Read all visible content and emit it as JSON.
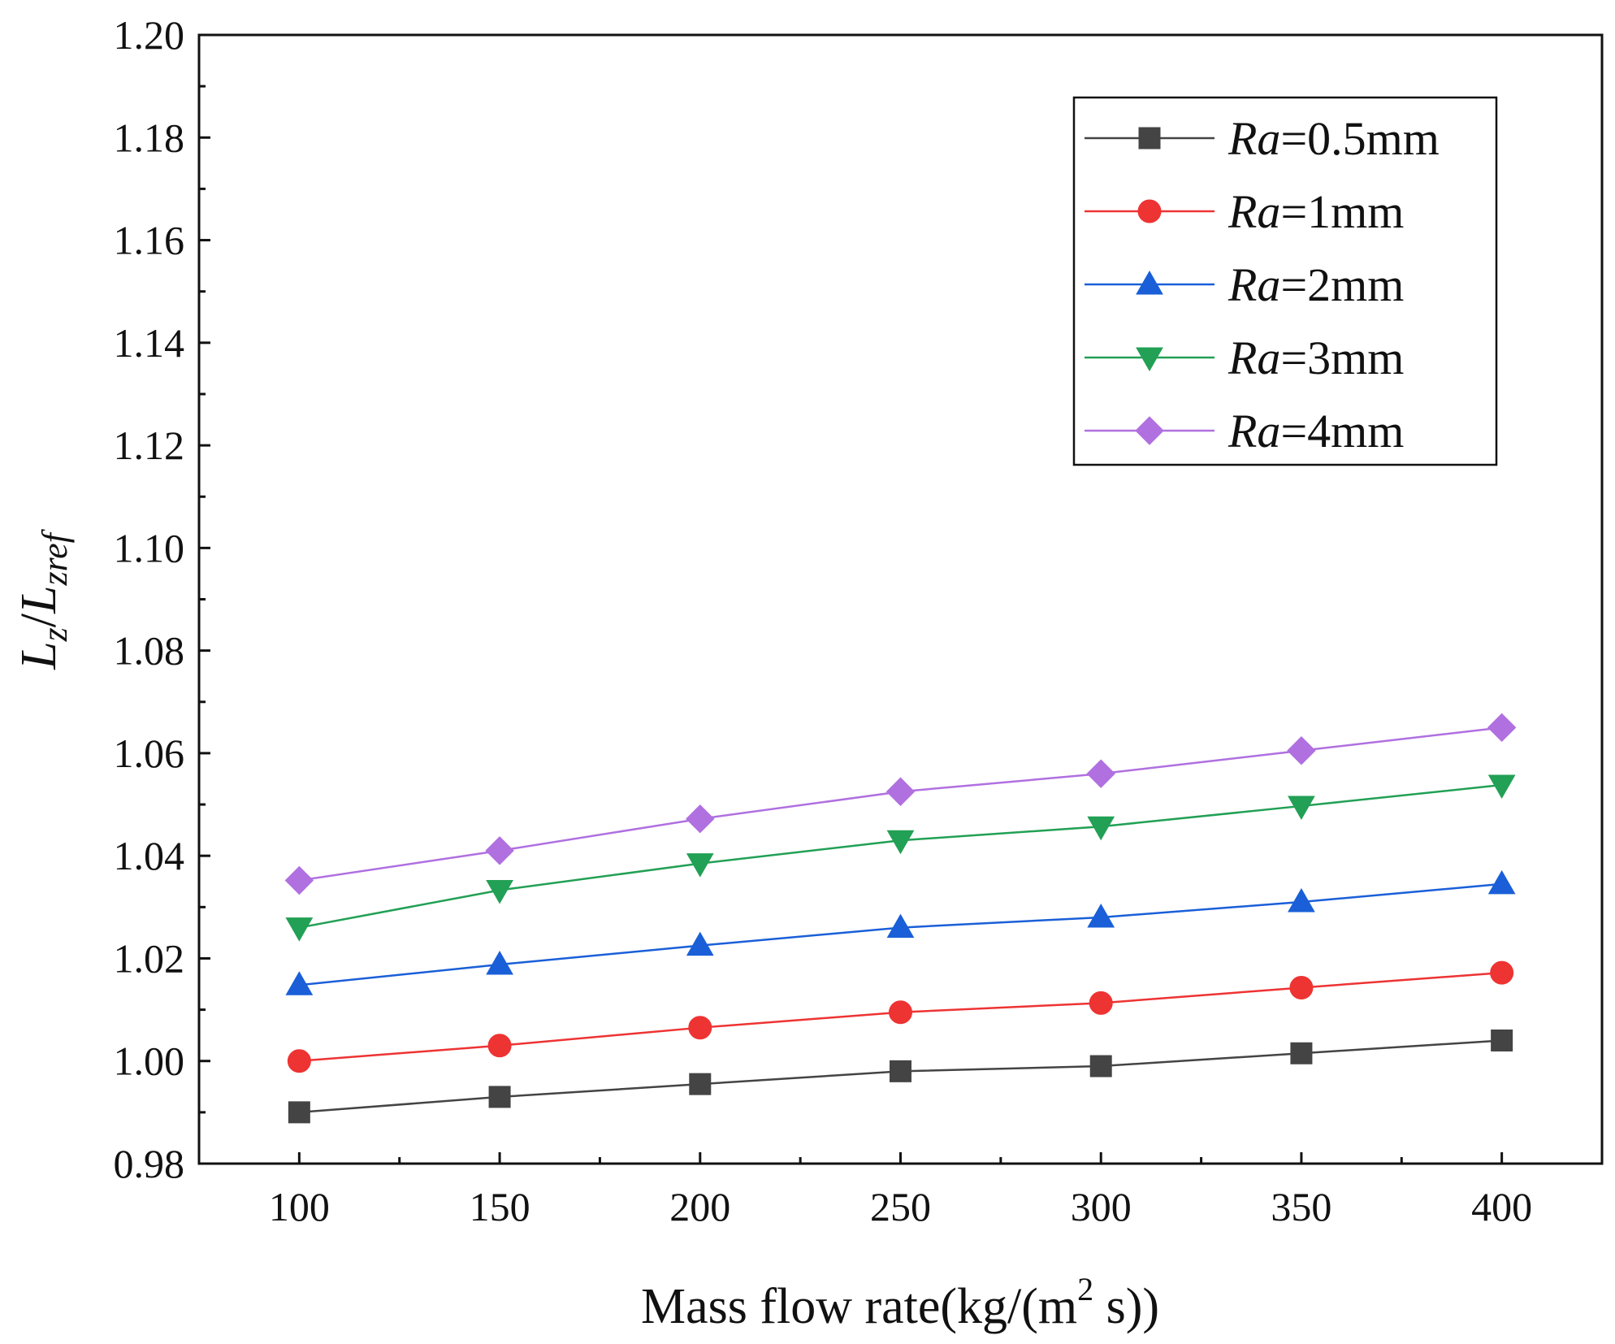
{
  "chart_data": {
    "type": "line",
    "x": [
      100,
      150,
      200,
      250,
      300,
      350,
      400
    ],
    "xticks": [
      "100",
      "150",
      "200",
      "250",
      "300",
      "350",
      "400"
    ],
    "xlim": [
      75,
      425
    ],
    "ylim": [
      0.98,
      1.2
    ],
    "yticks": [
      "0.98",
      "1.00",
      "1.02",
      "1.04",
      "1.06",
      "1.08",
      "1.10",
      "1.12",
      "1.14",
      "1.16",
      "1.18",
      "1.20"
    ],
    "xlabel": {
      "prefix": "Mass flow rate(kg/(m",
      "sup": "2",
      "suffix": " s))"
    },
    "ylabel": {
      "main": "L",
      "sub1": "z",
      "slash": "/",
      "main2": "L",
      "sub2": "zref"
    },
    "legend_position": "top-right",
    "grid": false,
    "series": [
      {
        "name": "Ra=0.5mm",
        "var": "Ra",
        "rest": "=0.5mm",
        "color": "#444444",
        "marker": "square",
        "values": [
          0.99,
          0.993,
          0.9955,
          0.998,
          0.999,
          1.0015,
          1.004
        ]
      },
      {
        "name": "Ra=1mm",
        "var": "Ra",
        "rest": "=1mm",
        "color": "#ee3333",
        "marker": "circle",
        "values": [
          1.0,
          1.003,
          1.0065,
          1.0095,
          1.0113,
          1.0143,
          1.0172
        ]
      },
      {
        "name": "Ra=2mm",
        "var": "Ra",
        "rest": "=2mm",
        "color": "#1a5fd8",
        "marker": "triangle-up",
        "values": [
          1.0148,
          1.0188,
          1.0225,
          1.026,
          1.028,
          1.031,
          1.0345
        ]
      },
      {
        "name": "Ra=3mm",
        "var": "Ra",
        "rest": "=3mm",
        "color": "#22a055",
        "marker": "triangle-down",
        "values": [
          1.026,
          1.0333,
          1.0385,
          1.043,
          1.0457,
          1.0497,
          1.0538
        ]
      },
      {
        "name": "Ra=4mm",
        "var": "Ra",
        "rest": "=4mm",
        "color": "#b070e0",
        "marker": "diamond",
        "values": [
          1.0352,
          1.041,
          1.0472,
          1.0525,
          1.056,
          1.0605,
          1.065
        ]
      }
    ]
  }
}
